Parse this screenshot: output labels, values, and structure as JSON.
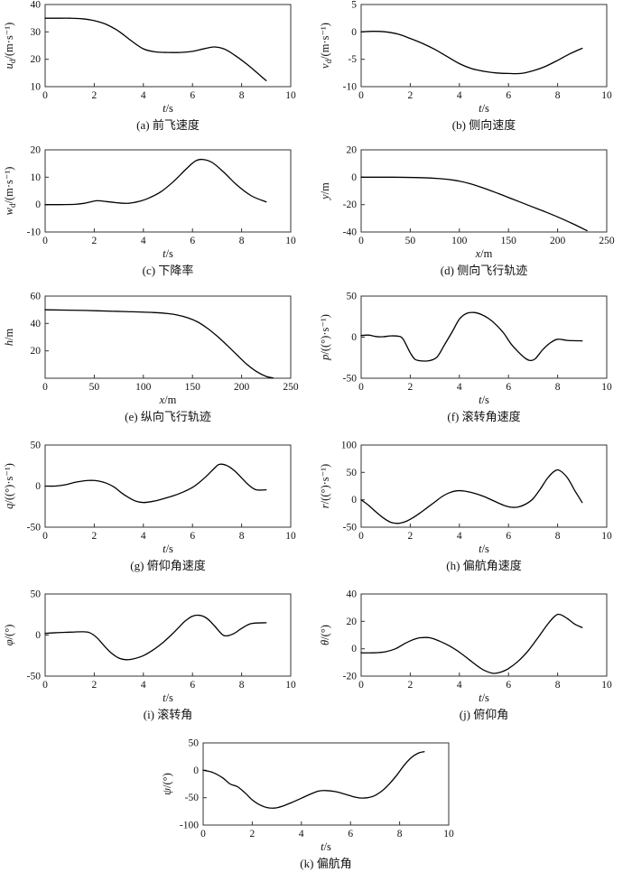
{
  "colors": {
    "curve": "#000000",
    "axis": "#333333",
    "text": "#111111"
  },
  "chart_data": [
    {
      "type": "line",
      "id": "a",
      "caption": "(a) 前飞速度",
      "ylabel": {
        "var": "u",
        "sub": "d",
        "unit": "/(m·s⁻¹)"
      },
      "xlabel": {
        "var": "t",
        "unit": "/s"
      },
      "xlim": [
        0,
        10
      ],
      "ylim": [
        10,
        40
      ],
      "xticks": [
        0,
        2,
        4,
        6,
        8,
        10
      ],
      "yticks": [
        10,
        20,
        30,
        40
      ],
      "x": [
        0,
        0.5,
        1,
        1.5,
        2,
        2.5,
        3,
        3.5,
        4,
        4.5,
        5,
        5.5,
        6,
        6.5,
        6.9,
        7.3,
        7.7,
        8.2,
        8.6,
        9
      ],
      "y": [
        35,
        35,
        35,
        34.8,
        34.1,
        32.7,
        30.2,
        26.8,
        23.8,
        22.7,
        22.5,
        22.5,
        22.9,
        23.9,
        24.5,
        23.7,
        21.6,
        18.3,
        15.3,
        12.2
      ]
    },
    {
      "type": "line",
      "id": "b",
      "caption": "(b) 侧向速度",
      "ylabel": {
        "var": "v",
        "sub": "d",
        "unit": "/(m·s⁻¹)"
      },
      "xlabel": {
        "var": "t",
        "unit": "/s"
      },
      "xlim": [
        0,
        10
      ],
      "ylim": [
        -10,
        5
      ],
      "xticks": [
        0,
        2,
        4,
        6,
        8,
        10
      ],
      "yticks": [
        -10,
        -5,
        0,
        5
      ],
      "x": [
        0,
        0.5,
        1,
        1.5,
        2,
        2.5,
        3,
        3.5,
        4,
        4.5,
        5,
        5.5,
        6,
        6.5,
        7,
        7.5,
        8,
        8.5,
        9
      ],
      "y": [
        0,
        0.1,
        0,
        -0.4,
        -1.2,
        -2.1,
        -3.2,
        -4.5,
        -5.8,
        -6.7,
        -7.2,
        -7.5,
        -7.6,
        -7.6,
        -7.1,
        -6.3,
        -5.2,
        -4,
        -3
      ]
    },
    {
      "type": "line",
      "id": "c",
      "caption": "(c) 下降率",
      "ylabel": {
        "var": "w",
        "sub": "d",
        "unit": "/(m·s⁻¹)"
      },
      "xlabel": {
        "var": "t",
        "unit": "/s"
      },
      "xlim": [
        0,
        10
      ],
      "ylim": [
        -10,
        20
      ],
      "xticks": [
        0,
        2,
        4,
        6,
        8,
        10
      ],
      "yticks": [
        -10,
        0,
        10,
        20
      ],
      "x": [
        0,
        0.6,
        1.2,
        1.6,
        2.1,
        2.5,
        3,
        3.4,
        3.8,
        4.2,
        4.7,
        5.2,
        5.7,
        6.1,
        6.4,
        6.8,
        7.3,
        7.8,
        8.4,
        9
      ],
      "y": [
        0,
        0,
        0.1,
        0.5,
        1.4,
        1.1,
        0.6,
        0.5,
        1.1,
        2.3,
        4.6,
        8.2,
        12.6,
        15.8,
        16.5,
        15.4,
        11.6,
        7.2,
        3.2,
        1
      ]
    },
    {
      "type": "line",
      "id": "d",
      "caption": "(d) 侧向飞行轨迹",
      "ylabel": {
        "var": "y",
        "sub": "",
        "unit": "/m"
      },
      "xlabel": {
        "var": "x",
        "unit": "/m"
      },
      "xlim": [
        0,
        250
      ],
      "ylim": [
        -40,
        20
      ],
      "xticks": [
        0,
        50,
        100,
        150,
        200,
        250
      ],
      "yticks": [
        -40,
        -20,
        0,
        20
      ],
      "x": [
        0,
        30,
        60,
        80,
        95,
        110,
        125,
        140,
        155,
        170,
        185,
        200,
        215,
        230
      ],
      "y": [
        0,
        0,
        -0.3,
        -1,
        -2.2,
        -4.5,
        -8,
        -12,
        -16.2,
        -20.4,
        -24.6,
        -29,
        -33.8,
        -39
      ]
    },
    {
      "type": "line",
      "id": "e",
      "caption": "(e) 纵向飞行轨迹",
      "ylabel": {
        "var": "h",
        "sub": "",
        "unit": "/m"
      },
      "xlabel": {
        "var": "x",
        "unit": "/m"
      },
      "xlim": [
        0,
        250
      ],
      "ylim": [
        0,
        60
      ],
      "xticks": [
        0,
        50,
        100,
        150,
        200,
        250
      ],
      "yticks": [
        20,
        40,
        60
      ],
      "x": [
        0,
        40,
        80,
        110,
        125,
        135,
        145,
        155,
        165,
        175,
        185,
        195,
        205,
        215,
        225,
        232
      ],
      "y": [
        50,
        49.5,
        48.7,
        48,
        47.2,
        46.1,
        44.2,
        41.2,
        36.6,
        30.8,
        24.2,
        17.2,
        10.4,
        5,
        1.3,
        0.2
      ]
    },
    {
      "type": "line",
      "id": "f",
      "caption": "(f) 滚转角速度",
      "ylabel": {
        "var": "p",
        "sub": "",
        "unit": "/((°)·s⁻¹)"
      },
      "xlabel": {
        "var": "t",
        "unit": "/s"
      },
      "xlim": [
        0,
        10
      ],
      "ylim": [
        -50,
        50
      ],
      "xticks": [
        0,
        2,
        4,
        6,
        8,
        10
      ],
      "yticks": [
        -50,
        0,
        50
      ],
      "x": [
        0,
        0.3,
        0.6,
        0.9,
        1.2,
        1.5,
        1.7,
        2.0,
        2.2,
        2.5,
        2.8,
        3.1,
        3.4,
        3.7,
        4.0,
        4.3,
        4.6,
        4.9,
        5.2,
        5.5,
        5.8,
        6.1,
        6.4,
        6.7,
        6.9,
        7.1,
        7.4,
        7.7,
        8.0,
        8.4,
        9.0
      ],
      "y": [
        2,
        2.5,
        0.8,
        0.5,
        1.5,
        1.2,
        -2,
        -19,
        -27,
        -29,
        -28.5,
        -24,
        -9,
        6,
        22,
        29,
        30,
        27.5,
        22.5,
        15,
        5,
        -8,
        -18,
        -26,
        -28.5,
        -26,
        -15,
        -7,
        -2.5,
        -4,
        -4.5
      ]
    },
    {
      "type": "line",
      "id": "g",
      "caption": "(g) 俯仰角速度",
      "ylabel": {
        "var": "q",
        "sub": "",
        "unit": "/((°)·s⁻¹)"
      },
      "xlabel": {
        "var": "t",
        "unit": "/s"
      },
      "xlim": [
        0,
        10
      ],
      "ylim": [
        -50,
        50
      ],
      "xticks": [
        0,
        2,
        4,
        6,
        8,
        10
      ],
      "yticks": [
        -50,
        0,
        50
      ],
      "x": [
        0,
        0.4,
        0.8,
        1.2,
        1.6,
        1.9,
        2.2,
        2.5,
        2.8,
        3.1,
        3.4,
        3.7,
        4.0,
        4.4,
        4.8,
        5.2,
        5.6,
        6.0,
        6.3,
        6.6,
        6.9,
        7.1,
        7.4,
        7.7,
        8.0,
        8.3,
        8.6,
        9.0
      ],
      "y": [
        0,
        0,
        1.5,
        4.5,
        6.5,
        7,
        6,
        3.5,
        -1,
        -8,
        -14,
        -18.5,
        -20,
        -18.5,
        -15.5,
        -12,
        -7.5,
        -1.5,
        5,
        13,
        22,
        26.5,
        25,
        19,
        10,
        1,
        -4.5,
        -4.5
      ]
    },
    {
      "type": "line",
      "id": "h",
      "caption": "(h) 偏航角速度",
      "ylabel": {
        "var": "r",
        "sub": "",
        "unit": "/((°)·s⁻¹)"
      },
      "xlabel": {
        "var": "t",
        "unit": "/s"
      },
      "xlim": [
        0,
        10
      ],
      "ylim": [
        -50,
        100
      ],
      "xticks": [
        0,
        2,
        4,
        6,
        8,
        10
      ],
      "yticks": [
        -50,
        0,
        50,
        100
      ],
      "x": [
        0,
        0.3,
        0.6,
        0.9,
        1.2,
        1.5,
        1.8,
        2.1,
        2.4,
        2.7,
        3.0,
        3.3,
        3.6,
        3.9,
        4.2,
        4.6,
        5.0,
        5.4,
        5.8,
        6.1,
        6.4,
        6.7,
        7.0,
        7.3,
        7.6,
        7.9,
        8.1,
        8.4,
        8.7,
        9.0
      ],
      "y": [
        0,
        -10,
        -22,
        -33,
        -41,
        -43,
        -40,
        -33,
        -24,
        -14,
        -4,
        6,
        13,
        16.5,
        16,
        12,
        6,
        -2,
        -10,
        -13.5,
        -13,
        -8,
        2,
        20,
        40,
        53,
        53,
        40,
        17,
        -5
      ]
    },
    {
      "type": "line",
      "id": "i",
      "caption": "(i) 滚转角",
      "ylabel": {
        "var": "φ",
        "sub": "",
        "unit": "/(°)"
      },
      "xlabel": {
        "var": "t",
        "unit": "/s"
      },
      "xlim": [
        0,
        10
      ],
      "ylim": [
        -50,
        50
      ],
      "xticks": [
        0,
        2,
        4,
        6,
        8,
        10
      ],
      "yticks": [
        -50,
        0,
        50
      ],
      "x": [
        0,
        0.5,
        1.0,
        1.5,
        1.8,
        2.1,
        2.4,
        2.7,
        3.0,
        3.3,
        3.6,
        4.0,
        4.4,
        4.8,
        5.1,
        5.4,
        5.7,
        6.0,
        6.3,
        6.6,
        6.9,
        7.2,
        7.4,
        7.7,
        8.0,
        8.4,
        9.0
      ],
      "y": [
        2,
        3,
        3.5,
        4,
        3,
        -3,
        -13,
        -22,
        -28,
        -30,
        -29,
        -25,
        -18,
        -9,
        -1,
        8,
        17,
        23,
        24,
        20,
        11,
        1,
        -1,
        2,
        8,
        14,
        15
      ]
    },
    {
      "type": "line",
      "id": "j",
      "caption": "(j) 俯仰角",
      "ylabel": {
        "var": "θ",
        "sub": "",
        "unit": "/(°)"
      },
      "xlabel": {
        "var": "t",
        "unit": "/s"
      },
      "xlim": [
        0,
        10
      ],
      "ylim": [
        -20,
        40
      ],
      "xticks": [
        0,
        2,
        4,
        6,
        8,
        10
      ],
      "yticks": [
        -20,
        0,
        20,
        40
      ],
      "x": [
        0,
        0.5,
        1.0,
        1.4,
        1.8,
        2.1,
        2.4,
        2.8,
        3.2,
        3.6,
        4.0,
        4.4,
        4.8,
        5.1,
        5.4,
        5.7,
        6.0,
        6.4,
        6.8,
        7.2,
        7.6,
        7.9,
        8.1,
        8.4,
        8.7,
        9.0
      ],
      "y": [
        -3,
        -3,
        -2.2,
        0,
        4,
        6.5,
        8,
        8,
        5.5,
        2,
        -2.5,
        -8,
        -13.5,
        -16.5,
        -18,
        -17,
        -14.5,
        -9,
        -1.5,
        8,
        18,
        24,
        25,
        22,
        18,
        15.5
      ]
    },
    {
      "type": "line",
      "id": "k",
      "caption": "(k) 偏航角",
      "ylabel": {
        "var": "ψ",
        "sub": "",
        "unit": "/(°)"
      },
      "xlabel": {
        "var": "t",
        "unit": "/s"
      },
      "xlim": [
        0,
        10
      ],
      "ylim": [
        -100,
        50
      ],
      "xticks": [
        0,
        2,
        4,
        6,
        8,
        10
      ],
      "yticks": [
        -100,
        -50,
        0,
        50
      ],
      "x": [
        0,
        0.4,
        0.8,
        1.1,
        1.4,
        1.7,
        2.0,
        2.3,
        2.6,
        2.9,
        3.2,
        3.6,
        4.0,
        4.4,
        4.7,
        5.0,
        5.4,
        5.8,
        6.1,
        6.4,
        6.7,
        7.0,
        7.3,
        7.6,
        7.9,
        8.2,
        8.5,
        8.8,
        9.0
      ],
      "y": [
        0,
        -4,
        -14,
        -25,
        -30,
        -41,
        -54,
        -63,
        -68,
        -69,
        -66,
        -59,
        -51,
        -43,
        -38,
        -37,
        -39,
        -44,
        -48,
        -50.5,
        -50,
        -46,
        -37,
        -24,
        -8,
        10,
        24,
        32,
        34
      ]
    }
  ]
}
